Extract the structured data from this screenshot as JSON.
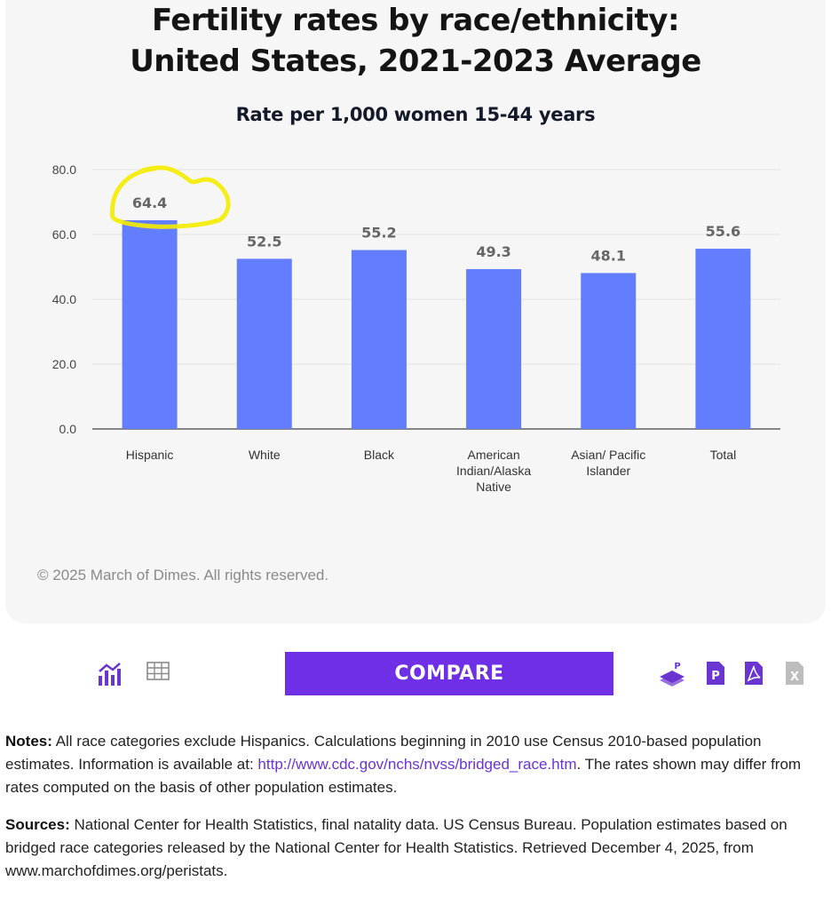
{
  "chart_card": {
    "title_line1": "Fertility rates by race/ethnicity:",
    "title_line2": "United States, 2021-2023 Average",
    "copyright": "© 2025 March of Dimes. All rights reserved."
  },
  "chart_data": {
    "type": "bar",
    "title": "Fertility rates by race/ethnicity: United States, 2021-2023 Average",
    "subtitle": "Rate per 1,000 women 15-44 years",
    "categories": [
      [
        "Hispanic"
      ],
      [
        "White"
      ],
      [
        "Black"
      ],
      [
        "American",
        "Indian/Alaska",
        "Native"
      ],
      [
        "Asian/ Pacific",
        "Islander"
      ],
      [
        "Total"
      ]
    ],
    "values": [
      64.4,
      52.5,
      55.2,
      49.3,
      48.1,
      55.6
    ],
    "value_labels": [
      "64.4",
      "52.5",
      "55.2",
      "49.3",
      "48.1",
      "55.6"
    ],
    "yticks": [
      "0.0",
      "20.0",
      "40.0",
      "60.0",
      "80.0"
    ],
    "ytick_values": [
      0,
      20,
      40,
      60,
      80
    ],
    "ylim": [
      0,
      80
    ],
    "grid": true,
    "bar_color": "#637dff",
    "annotation": {
      "highlight_category": "Hispanic",
      "color": "#f5ec00"
    }
  },
  "toolbar": {
    "compare_label": "COMPARE",
    "icons": [
      "chart-view-icon",
      "table-view-icon",
      "powerpoint-export-icon",
      "publisher-export-icon",
      "pdf-export-icon",
      "excel-export-icon"
    ],
    "accent_color": "#6e2fe6"
  },
  "notes": {
    "notes_label": "Notes:",
    "notes_text_before": " All race categories exclude Hispanics. Calculations beginning in 2010 use Census 2010-based population estimates. Information is available at: ",
    "notes_link": "http://www.cdc.gov/nchs/nvss/bridged_race.htm",
    "notes_text_after": ". The rates shown may differ from rates computed on the basis of other population estimates.",
    "sources_label": "Sources:",
    "sources_text": " National Center for Health Statistics, final natality data. US Census Bureau. Population estimates based on bridged race categories released by the National Center for Health Statistics. Retrieved December 4, 2025, from www.marchofdimes.org/peristats."
  }
}
